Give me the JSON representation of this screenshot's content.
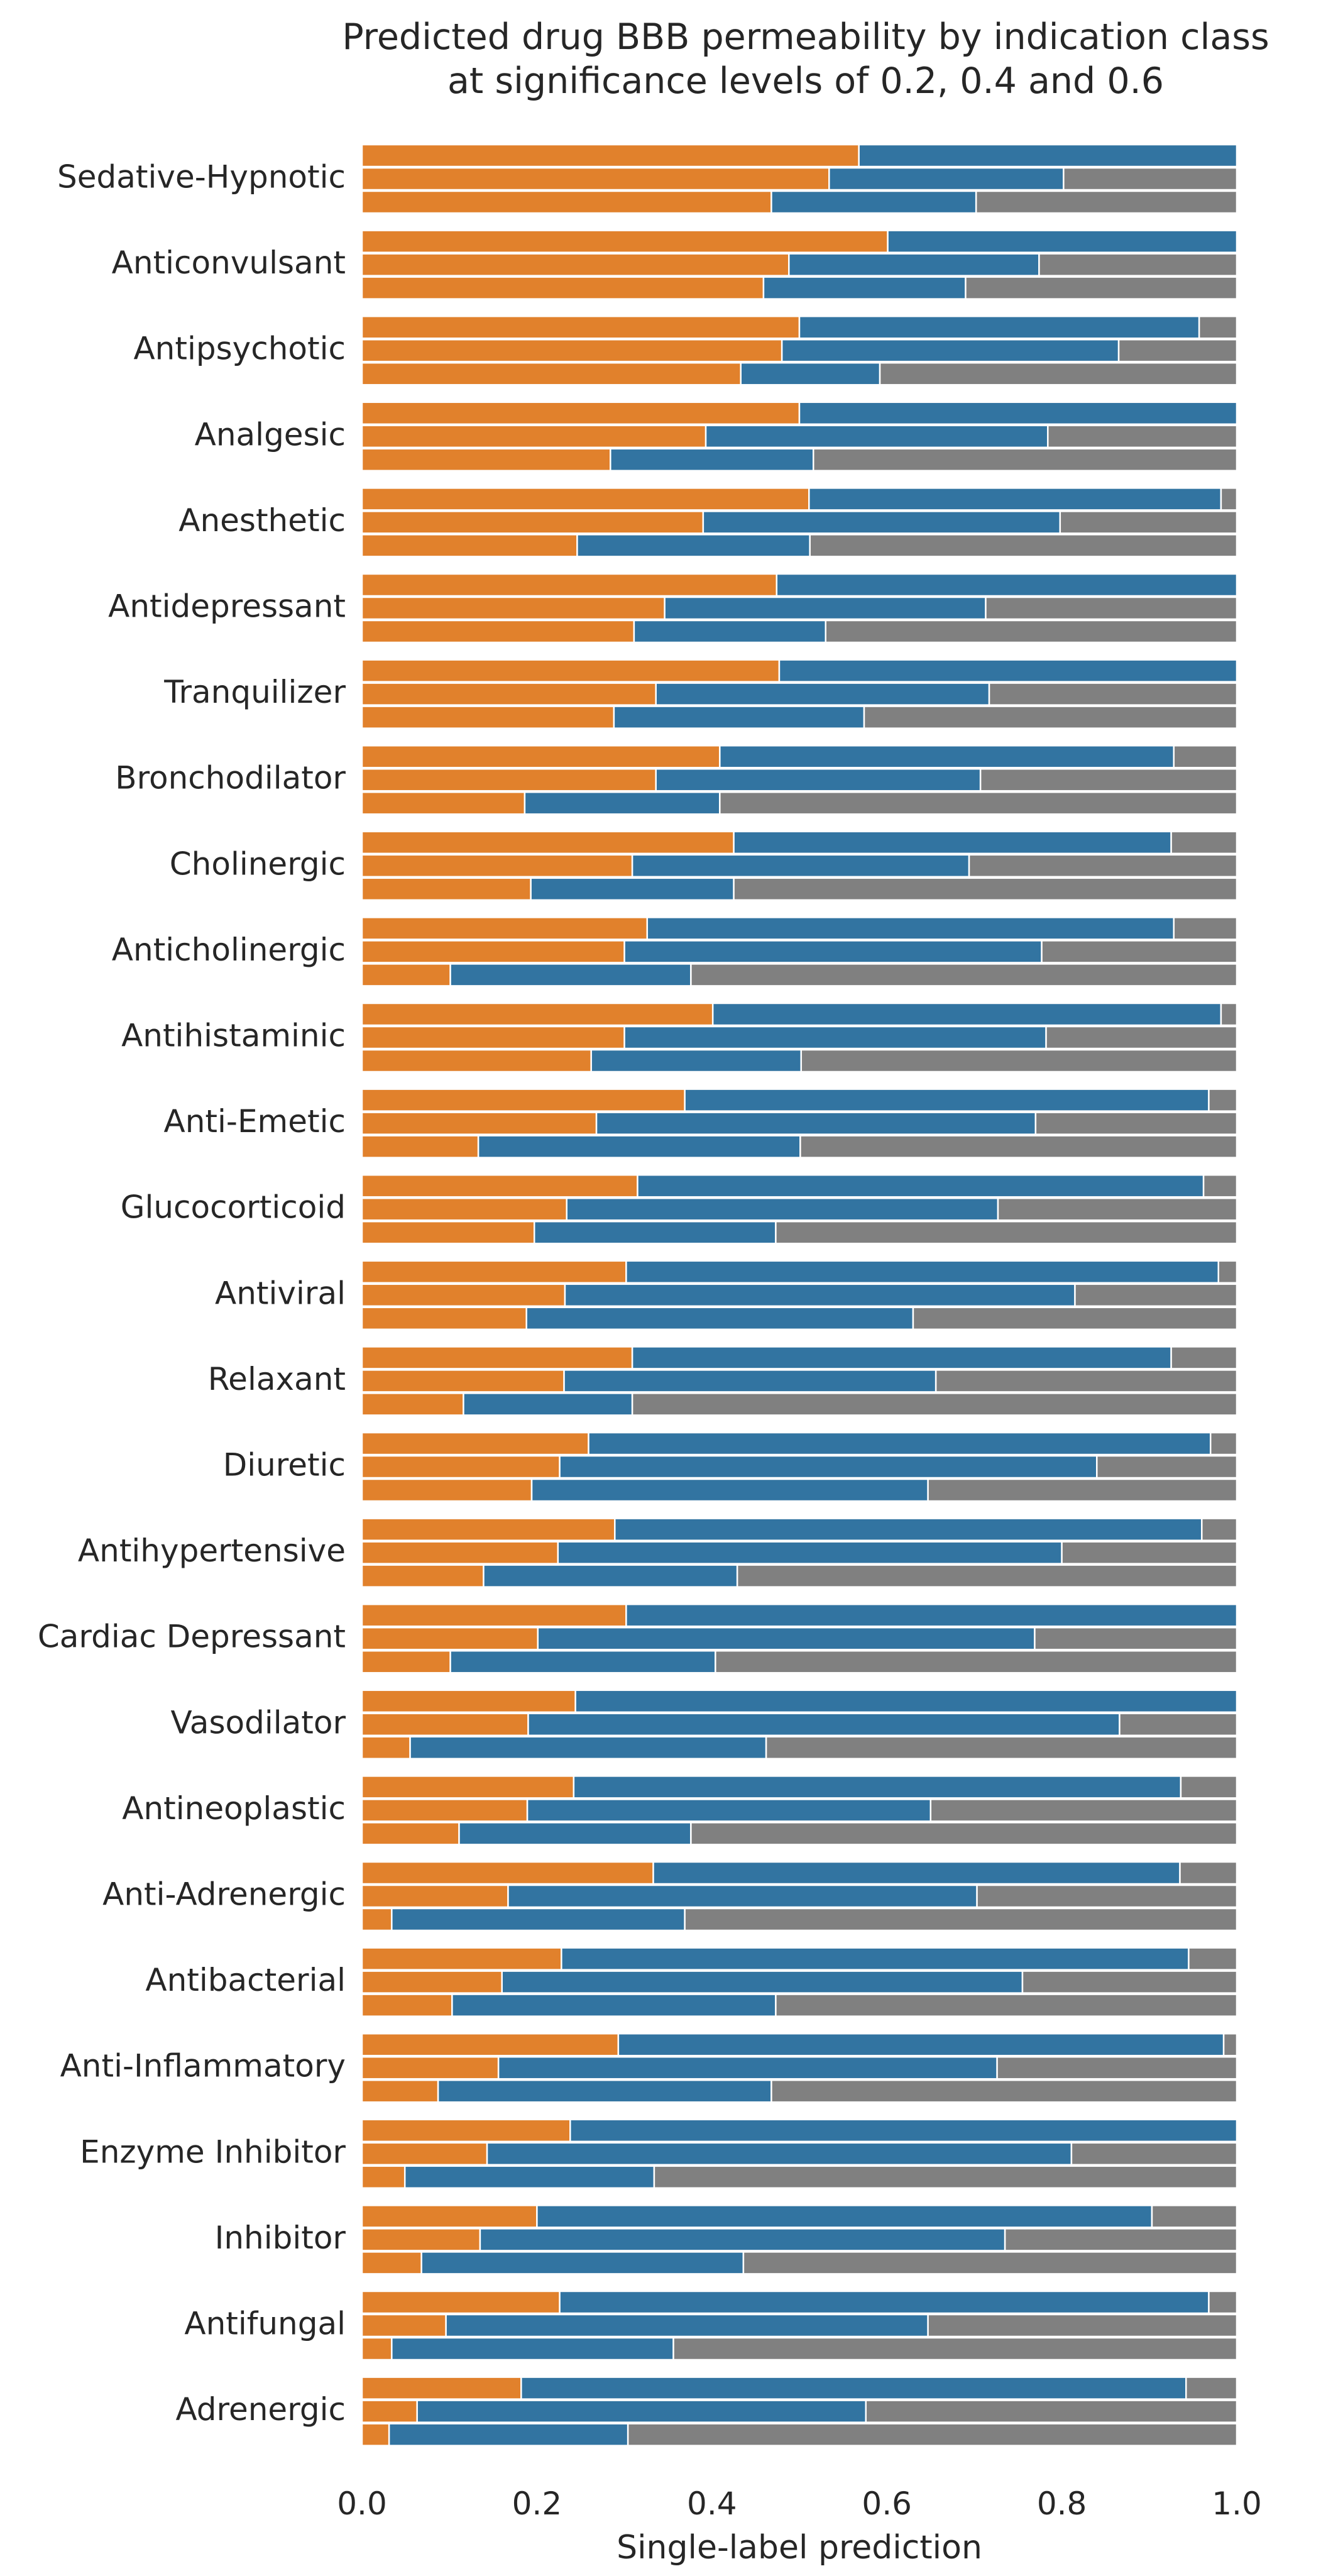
{
  "chart_data": {
    "type": "bar",
    "orientation": "horizontal",
    "stacked": true,
    "title": [
      "Predicted drug BBB permeability by indication class",
      "at significance levels of 0.2, 0.4 and 0.6"
    ],
    "xlabel": "Single-label prediction",
    "ylabel": "",
    "xlim": [
      0,
      1
    ],
    "xticks": [
      "0.0",
      "0.2",
      "0.4",
      "0.6",
      "0.8",
      "1.0"
    ],
    "grid": false,
    "legend": "none",
    "colors": {
      "segment1": "#e1812c",
      "segment2": "#3274a1",
      "segment3": "#808080",
      "edge": "#ffffff"
    },
    "significance_levels": [
      0.2,
      0.4,
      0.6
    ],
    "bar_order_within_category": "top-to-bottom: 0.2, 0.4, 0.6",
    "categories": [
      "Sedative-Hypnotic",
      "Anticonvulsant",
      "Antipsychotic",
      "Analgesic",
      "Anesthetic",
      "Antidepressant",
      "Tranquilizer",
      "Bronchodilator",
      "Cholinergic",
      "Anticholinergic",
      "Antihistaminic",
      "Anti-Emetic",
      "Glucocorticoid",
      "Antiviral",
      "Relaxant",
      "Diuretic",
      "Antihypertensive",
      "Cardiac Depressant",
      "Vasodilator",
      "Antineoplastic",
      "Anti-Adrenergic",
      "Antibacterial",
      "Anti-Inflammatory",
      "Enzyme Inhibitor",
      "Inhibitor",
      "Antifungal",
      "Adrenergic"
    ],
    "series": [
      {
        "level": 0.2,
        "orange_end": [
          0.568,
          0.601,
          0.5,
          0.5,
          0.511,
          0.474,
          0.477,
          0.409,
          0.425,
          0.326,
          0.401,
          0.369,
          0.315,
          0.302,
          0.309,
          0.259,
          0.289,
          0.302,
          0.244,
          0.242,
          0.333,
          0.228,
          0.293,
          0.238,
          0.2,
          0.226,
          0.182
        ],
        "blue_end": [
          1.0,
          1.0,
          0.957,
          1.0,
          0.982,
          1.0,
          1.0,
          0.928,
          0.925,
          0.928,
          0.982,
          0.968,
          0.962,
          0.979,
          0.925,
          0.97,
          0.96,
          1.0,
          1.0,
          0.936,
          0.935,
          0.945,
          0.985,
          1.0,
          0.903,
          0.968,
          0.942
        ]
      },
      {
        "level": 0.4,
        "orange_end": [
          0.534,
          0.488,
          0.48,
          0.393,
          0.39,
          0.346,
          0.336,
          0.336,
          0.309,
          0.3,
          0.3,
          0.268,
          0.234,
          0.232,
          0.231,
          0.226,
          0.224,
          0.201,
          0.19,
          0.189,
          0.167,
          0.16,
          0.156,
          0.143,
          0.135,
          0.096,
          0.063
        ],
        "blue_end": [
          0.802,
          0.774,
          0.865,
          0.784,
          0.798,
          0.713,
          0.717,
          0.707,
          0.694,
          0.777,
          0.782,
          0.77,
          0.727,
          0.815,
          0.656,
          0.84,
          0.8,
          0.769,
          0.866,
          0.65,
          0.703,
          0.755,
          0.726,
          0.811,
          0.735,
          0.647,
          0.576
        ]
      },
      {
        "level": 0.6,
        "orange_end": [
          0.468,
          0.459,
          0.433,
          0.284,
          0.246,
          0.311,
          0.288,
          0.186,
          0.193,
          0.101,
          0.262,
          0.133,
          0.197,
          0.188,
          0.116,
          0.194,
          0.139,
          0.101,
          0.055,
          0.111,
          0.034,
          0.103,
          0.087,
          0.049,
          0.068,
          0.034,
          0.031
        ],
        "blue_end": [
          0.702,
          0.69,
          0.592,
          0.516,
          0.512,
          0.53,
          0.574,
          0.409,
          0.425,
          0.376,
          0.502,
          0.501,
          0.473,
          0.63,
          0.309,
          0.647,
          0.429,
          0.404,
          0.462,
          0.376,
          0.369,
          0.473,
          0.468,
          0.334,
          0.436,
          0.356,
          0.304
        ]
      }
    ]
  }
}
